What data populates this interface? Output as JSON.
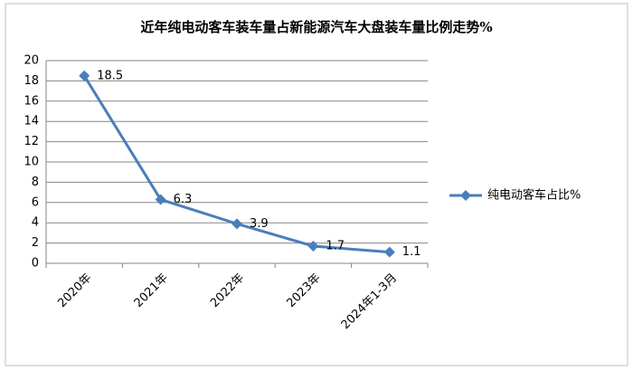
{
  "chart_data": {
    "type": "line",
    "title": "近年纯电动客车装车量占新能源汽车大盘装车量比例走势%",
    "categories": [
      "2020年",
      "2021年",
      "2022年",
      "2023年",
      "2024年1-3月"
    ],
    "series": [
      {
        "name": "纯电动客车占比%",
        "color": "#4a7ebb",
        "values": [
          18.5,
          6.3,
          3.9,
          1.7,
          1.1
        ]
      }
    ],
    "ylim": [
      0,
      20
    ],
    "yticks": [
      0,
      2,
      4,
      6,
      8,
      10,
      12,
      14,
      16,
      18,
      20
    ],
    "grid": true,
    "legend": "right"
  }
}
